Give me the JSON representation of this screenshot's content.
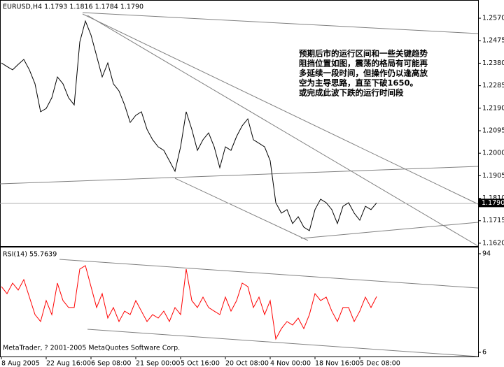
{
  "chart_data": [
    {
      "type": "line",
      "title": "EURUSD,H4  1.1793 1.1816 1.1784 1.1790",
      "annotation": [
        "预期后市的运行区间和一些关键趋势",
        "阻挡位置如图，震荡的格局有可能再",
        "多延续一段时间，但操作仍以逢高放",
        "空为主导思路，直至下破1650。",
        "或完成此波下跌的运行时间段"
      ],
      "categories": [
        "8 Aug 2005",
        null,
        null,
        null,
        null,
        null,
        null,
        null,
        "22 Aug 16:00",
        null,
        null,
        null,
        null,
        null,
        null,
        null,
        "6 Sep 08:00",
        null,
        null,
        null,
        null,
        null,
        null,
        null,
        "21 Sep 00:00",
        null,
        null,
        null,
        null,
        null,
        null,
        null,
        "5 Oct 16:00",
        null,
        null,
        null,
        null,
        null,
        null,
        null,
        "20 Oct 08:00",
        null,
        null,
        null,
        null,
        null,
        null,
        null,
        "4 Nov 00:00",
        null,
        null,
        null,
        null,
        null,
        null,
        null,
        "18 Nov 16:00",
        null,
        null,
        null,
        null,
        null,
        null,
        null,
        "5 Dec 08:00",
        null,
        null,
        null
      ],
      "series": [
        {
          "name": "EURUSD",
          "color": "#000000",
          "values": [
            1.2381,
            1.2366,
            1.2352,
            1.2375,
            1.2396,
            1.2352,
            1.2293,
            1.2175,
            1.2189,
            1.2234,
            1.2322,
            1.2293,
            1.2234,
            1.2204,
            1.247,
            1.2558,
            1.2499,
            1.2411,
            1.2322,
            1.2381,
            1.2293,
            1.2263,
            1.2204,
            1.213,
            1.216,
            1.2175,
            1.2101,
            1.2057,
            1.2027,
            1.2012,
            1.1968,
            1.1924,
            1.2027,
            1.2175,
            1.2101,
            1.2012,
            1.2057,
            1.2086,
            1.2027,
            1.1939,
            1.2027,
            1.2012,
            1.2071,
            1.2116,
            1.2145,
            1.2057,
            1.2042,
            1.2027,
            1.1968,
            1.1791,
            1.1747,
            1.1762,
            1.1703,
            1.1732,
            1.1688,
            1.1673,
            1.1762,
            1.1806,
            1.1791,
            1.1762,
            1.1703,
            1.1776,
            1.1791,
            1.1747,
            1.1717,
            1.1776,
            1.1762,
            1.179
          ]
        }
      ],
      "current_price": {
        "value": 1.179,
        "label": "1.1790"
      },
      "ylim": [
        1.1608,
        1.2641
      ],
      "yticks": [
        {
          "value": 1.257,
          "label": "1.2570"
        },
        1.2475,
        {
          "value": 1.238,
          "label": "1.2380"
        },
        1.2285,
        {
          "value": 1.219,
          "label": "1.2190"
        },
        1.2095,
        {
          "value": 1.2,
          "label": "1.2000"
        },
        1.1905,
        {
          "value": 1.181,
          "label": "1.1810"
        },
        1.1715,
        {
          "value": 1.162,
          "label": "1.1620"
        }
      ]
    },
    {
      "type": "line",
      "title": "RSI(14) 55.7639",
      "footer": "MetaTrader, ? 2001-2005 MetaQuotes Software Corp.",
      "series": [
        {
          "name": "RSI(14)",
          "color": "#ff0000",
          "values": [
            64.7,
            58.4,
            67.8,
            61.6,
            70.9,
            55.3,
            39.7,
            33.5,
            52.2,
            39.7,
            67.8,
            52.2,
            46.0,
            46.0,
            80.3,
            83.4,
            64.7,
            46.0,
            58.4,
            36.6,
            46.0,
            33.5,
            42.8,
            39.7,
            52.2,
            42.8,
            33.5,
            39.7,
            36.6,
            42.8,
            33.5,
            46.0,
            39.7,
            80.3,
            52.2,
            46.0,
            55.3,
            46.0,
            42.8,
            39.7,
            55.3,
            42.8,
            52.2,
            67.8,
            64.7,
            46.0,
            55.3,
            39.7,
            52.2,
            17.9,
            27.2,
            33.5,
            30.4,
            36.6,
            27.2,
            39.7,
            58.4,
            52.2,
            55.3,
            42.8,
            33.5,
            46.0,
            46.0,
            33.5,
            42.8,
            55.3,
            46.0,
            55.76
          ]
        }
      ],
      "ylim": [
        2.3,
        99.6
      ],
      "yticks": [
        94,
        6
      ]
    }
  ]
}
